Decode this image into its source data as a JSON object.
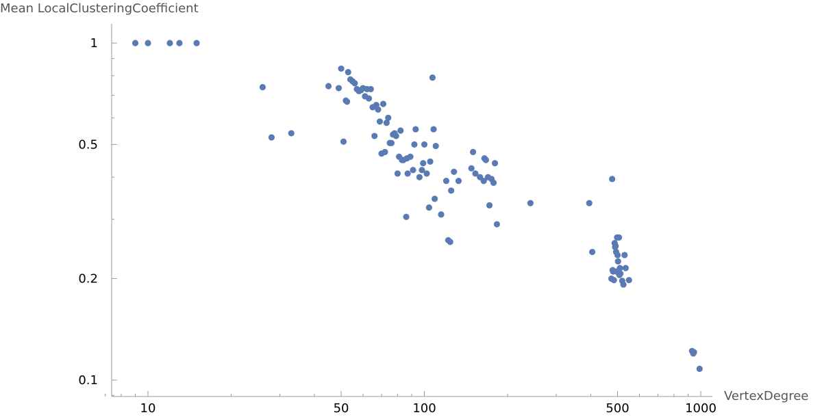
{
  "chart_data": {
    "type": "scatter",
    "scale": {
      "x": "log",
      "y": "log"
    },
    "xlabel": "VertexDegree",
    "ylabel": "Mean LocalClusteringCoefficient",
    "xlim": [
      6.8,
      1100
    ],
    "ylim": [
      0.089,
      1.1
    ],
    "x_ticks": [
      {
        "value": 10,
        "label": "10"
      },
      {
        "value": 50,
        "label": "50"
      },
      {
        "value": 100,
        "label": "100"
      },
      {
        "value": 500,
        "label": "500"
      },
      {
        "value": 1000,
        "label": "1000"
      }
    ],
    "y_ticks": [
      {
        "value": 0.1,
        "label": "0.1"
      },
      {
        "value": 0.2,
        "label": "0.2"
      },
      {
        "value": 0.5,
        "label": "0.5"
      },
      {
        "value": 1,
        "label": "1"
      }
    ],
    "x_minor_ticks": [
      7,
      8,
      9,
      20,
      30,
      40,
      60,
      70,
      80,
      90,
      200,
      300,
      400,
      600,
      700,
      800,
      900
    ],
    "y_minor_ticks": [
      0.09,
      0.3,
      0.4,
      0.6,
      0.7,
      0.8,
      0.9
    ],
    "grid": false,
    "color": "#5a7ab3",
    "points": [
      [
        9,
        1.0
      ],
      [
        10,
        1.0
      ],
      [
        12,
        1.0
      ],
      [
        13,
        1.0
      ],
      [
        15,
        1.0
      ],
      [
        26,
        0.74
      ],
      [
        28,
        0.525
      ],
      [
        33,
        0.54
      ],
      [
        45,
        0.745
      ],
      [
        49,
        0.735
      ],
      [
        50,
        0.84
      ],
      [
        51,
        0.51
      ],
      [
        52,
        0.675
      ],
      [
        52.5,
        0.67
      ],
      [
        53,
        0.82
      ],
      [
        54,
        0.78
      ],
      [
        55,
        0.77
      ],
      [
        56,
        0.76
      ],
      [
        57,
        0.73
      ],
      [
        58,
        0.72
      ],
      [
        59,
        0.725
      ],
      [
        60,
        0.735
      ],
      [
        61,
        0.695
      ],
      [
        62,
        0.73
      ],
      [
        63,
        0.685
      ],
      [
        64,
        0.73
      ],
      [
        65,
        0.645
      ],
      [
        66,
        0.53
      ],
      [
        67,
        0.655
      ],
      [
        68,
        0.635
      ],
      [
        69,
        0.585
      ],
      [
        70,
        0.47
      ],
      [
        71,
        0.66
      ],
      [
        72,
        0.475
      ],
      [
        73,
        0.58
      ],
      [
        74,
        0.6
      ],
      [
        75,
        0.505
      ],
      [
        76,
        0.505
      ],
      [
        77,
        0.535
      ],
      [
        78,
        0.54
      ],
      [
        79,
        0.53
      ],
      [
        80,
        0.41
      ],
      [
        81,
        0.46
      ],
      [
        82,
        0.55
      ],
      [
        83,
        0.45
      ],
      [
        84,
        0.45
      ],
      [
        86,
        0.305
      ],
      [
        86.5,
        0.455
      ],
      [
        87,
        0.41
      ],
      [
        89,
        0.46
      ],
      [
        91,
        0.42
      ],
      [
        92,
        0.5
      ],
      [
        93,
        0.555
      ],
      [
        96,
        0.4
      ],
      [
        98,
        0.42
      ],
      [
        99,
        0.44
      ],
      [
        100,
        0.5
      ],
      [
        102,
        0.41
      ],
      [
        104,
        0.325
      ],
      [
        105,
        0.445
      ],
      [
        107,
        0.79
      ],
      [
        108,
        0.555
      ],
      [
        109,
        0.345
      ],
      [
        110,
        0.495
      ],
      [
        115,
        0.31
      ],
      [
        120,
        0.39
      ],
      [
        122,
        0.26
      ],
      [
        124,
        0.257
      ],
      [
        125,
        0.365
      ],
      [
        128,
        0.415
      ],
      [
        133,
        0.39
      ],
      [
        148,
        0.425
      ],
      [
        150,
        0.475
      ],
      [
        153,
        0.41
      ],
      [
        159,
        0.4
      ],
      [
        164,
        0.39
      ],
      [
        165,
        0.455
      ],
      [
        167,
        0.45
      ],
      [
        170,
        0.4
      ],
      [
        172,
        0.33
      ],
      [
        175,
        0.395
      ],
      [
        178,
        0.385
      ],
      [
        180,
        0.44
      ],
      [
        183,
        0.29
      ],
      [
        242,
        0.335
      ],
      [
        395,
        0.335
      ],
      [
        405,
        0.24
      ],
      [
        475,
        0.2
      ],
      [
        478,
        0.395
      ],
      [
        480,
        0.212
      ],
      [
        482,
        0.21
      ],
      [
        485,
        0.198
      ],
      [
        488,
        0.255
      ],
      [
        490,
        0.248
      ],
      [
        492,
        0.25
      ],
      [
        494,
        0.24
      ],
      [
        496,
        0.21
      ],
      [
        498,
        0.265
      ],
      [
        500,
        0.235
      ],
      [
        502,
        0.225
      ],
      [
        504,
        0.208
      ],
      [
        506,
        0.265
      ],
      [
        508,
        0.205
      ],
      [
        510,
        0.215
      ],
      [
        512,
        0.207
      ],
      [
        520,
        0.197
      ],
      [
        525,
        0.192
      ],
      [
        530,
        0.235
      ],
      [
        535,
        0.215
      ],
      [
        550,
        0.198
      ],
      [
        930,
        0.122
      ],
      [
        940,
        0.12
      ],
      [
        945,
        0.121
      ],
      [
        990,
        0.108
      ]
    ]
  }
}
